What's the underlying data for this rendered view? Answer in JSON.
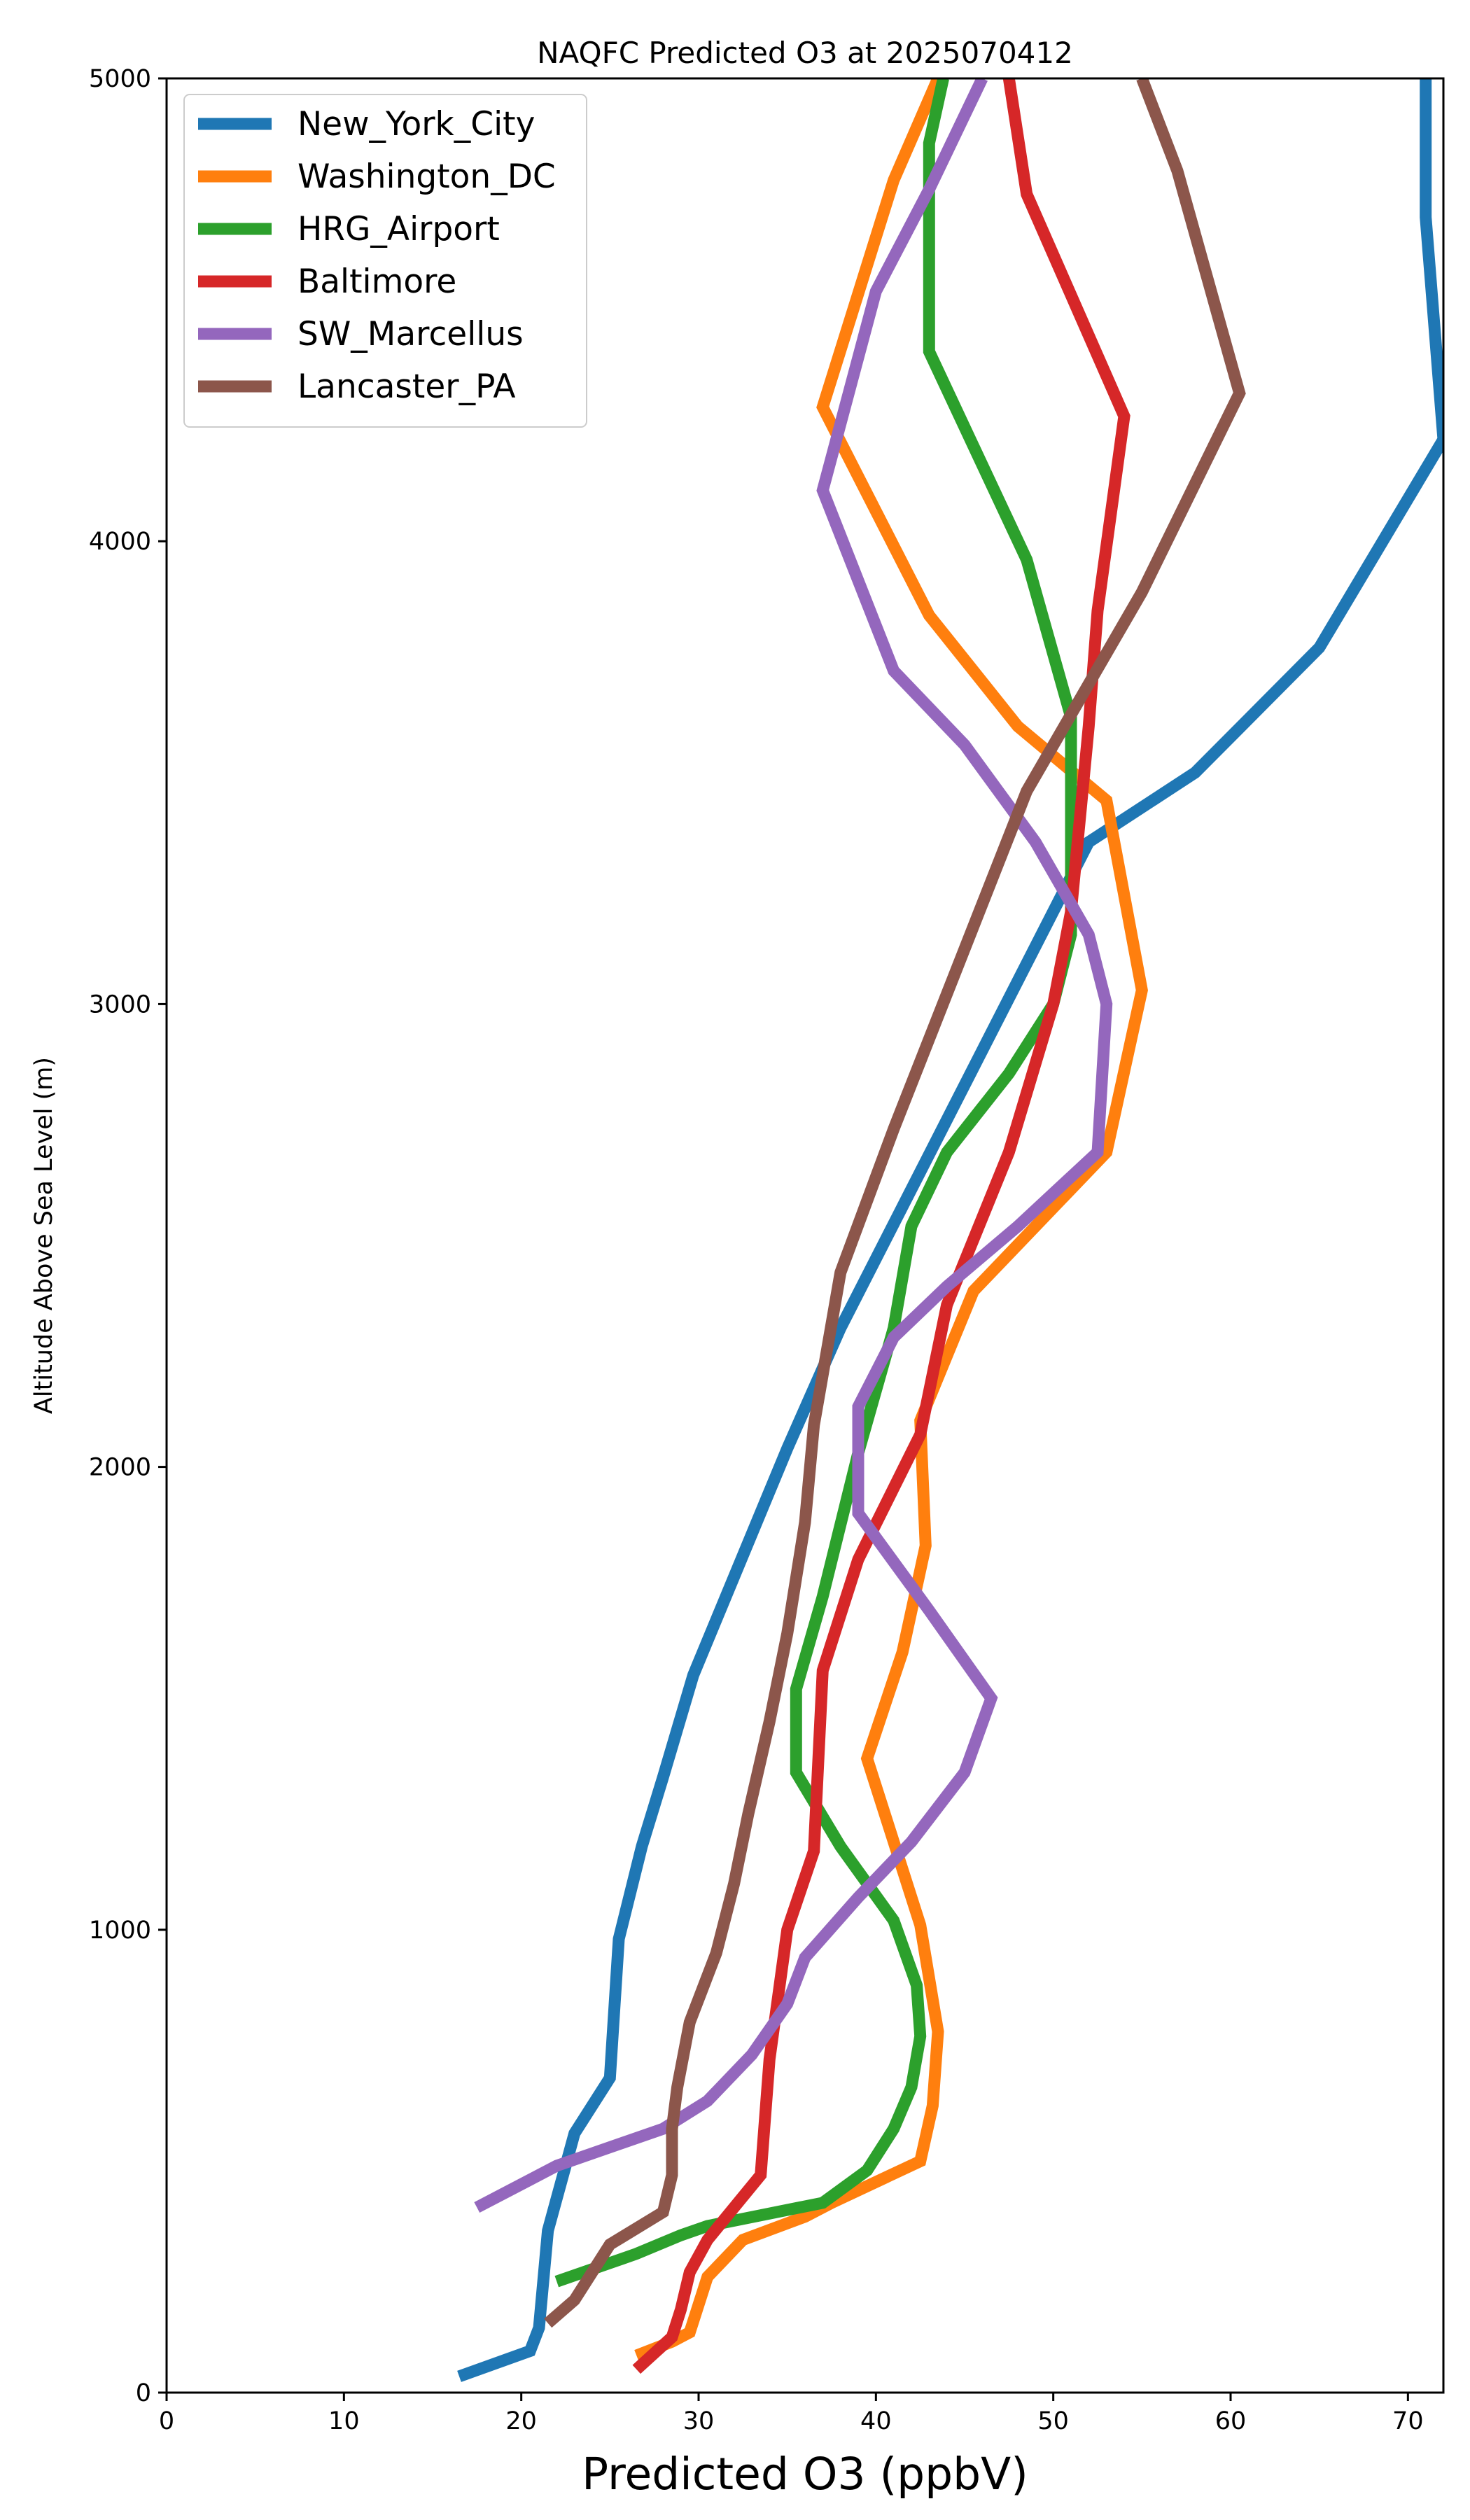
{
  "chart_data": {
    "type": "line",
    "title": "NAQFC Predicted O3 at 2025070412",
    "xlabel": "Predicted O3 (ppbV)",
    "ylabel": "Altitude Above Sea Level (m)",
    "xlim": [
      0,
      72
    ],
    "ylim": [
      0,
      5000
    ],
    "xticks": [
      "0",
      "10",
      "20",
      "30",
      "40",
      "50",
      "60",
      "70"
    ],
    "yticks": [
      "0",
      "1000",
      "2000",
      "3000",
      "4000",
      "5000"
    ],
    "grid": false,
    "legend_position": "top-left",
    "series": [
      {
        "name": "New_York_City",
        "color": "#1f77b4",
        "points": [
          [
            16.5,
            35
          ],
          [
            20.5,
            90
          ],
          [
            21,
            140
          ],
          [
            21.5,
            350
          ],
          [
            23,
            560
          ],
          [
            25,
            680
          ],
          [
            25.5,
            980
          ],
          [
            26.8,
            1180
          ],
          [
            28,
            1330
          ],
          [
            29.7,
            1550
          ],
          [
            35,
            2040
          ],
          [
            38,
            2300
          ],
          [
            42,
            2600
          ],
          [
            46,
            2900
          ],
          [
            52,
            3350
          ],
          [
            58,
            3500
          ],
          [
            65,
            3770
          ],
          [
            72,
            4220
          ],
          [
            71,
            4700
          ],
          [
            71,
            5000
          ]
        ]
      },
      {
        "name": "Washington_DC",
        "color": "#ff7f0e",
        "points": [
          [
            26.5,
            80
          ],
          [
            28.5,
            110
          ],
          [
            29.5,
            130
          ],
          [
            30.5,
            250
          ],
          [
            32.5,
            330
          ],
          [
            36,
            380
          ],
          [
            37.5,
            410
          ],
          [
            42.5,
            500
          ],
          [
            43.2,
            620
          ],
          [
            43.5,
            780
          ],
          [
            42.5,
            1010
          ],
          [
            39.5,
            1370
          ],
          [
            41.5,
            1600
          ],
          [
            42.8,
            1830
          ],
          [
            42.5,
            2100
          ],
          [
            45.5,
            2380
          ],
          [
            53,
            2680
          ],
          [
            55,
            3030
          ],
          [
            53,
            3440
          ],
          [
            48,
            3600
          ],
          [
            43,
            3840
          ],
          [
            37,
            4290
          ],
          [
            41,
            4780
          ],
          [
            43.5,
            5000
          ]
        ]
      },
      {
        "name": "HRG_Airport",
        "color": "#2ca02c",
        "points": [
          [
            22,
            240
          ],
          [
            25,
            280
          ],
          [
            26.5,
            300
          ],
          [
            29,
            340
          ],
          [
            30.5,
            360
          ],
          [
            37,
            410
          ],
          [
            39.5,
            480
          ],
          [
            41,
            570
          ],
          [
            42,
            660
          ],
          [
            42.5,
            770
          ],
          [
            42.3,
            880
          ],
          [
            41,
            1020
          ],
          [
            38,
            1180
          ],
          [
            35.5,
            1340
          ],
          [
            35.5,
            1520
          ],
          [
            37,
            1720
          ],
          [
            39,
            2030
          ],
          [
            41,
            2300
          ],
          [
            42,
            2520
          ],
          [
            44,
            2680
          ],
          [
            47.5,
            2850
          ],
          [
            50,
            3000
          ],
          [
            51,
            3150
          ],
          [
            51,
            3620
          ],
          [
            48.5,
            3960
          ],
          [
            43,
            4410
          ],
          [
            43,
            4860
          ],
          [
            43.8,
            5000
          ]
        ]
      },
      {
        "name": "Baltimore",
        "color": "#d62728",
        "points": [
          [
            26.5,
            50
          ],
          [
            28.5,
            120
          ],
          [
            29,
            180
          ],
          [
            29.5,
            260
          ],
          [
            30.5,
            330
          ],
          [
            33.5,
            470
          ],
          [
            34,
            720
          ],
          [
            35,
            1000
          ],
          [
            36.5,
            1170
          ],
          [
            37,
            1560
          ],
          [
            39,
            1800
          ],
          [
            42.5,
            2070
          ],
          [
            44,
            2350
          ],
          [
            47.5,
            2680
          ],
          [
            50,
            3000
          ],
          [
            51,
            3200
          ],
          [
            52,
            3600
          ],
          [
            52.5,
            3850
          ],
          [
            54,
            4270
          ],
          [
            48.5,
            4750
          ],
          [
            47.5,
            5000
          ]
        ]
      },
      {
        "name": "SW_Marcellus",
        "color": "#9467bd",
        "points": [
          [
            17.5,
            400
          ],
          [
            22,
            490
          ],
          [
            28,
            570
          ],
          [
            30.5,
            630
          ],
          [
            33,
            730
          ],
          [
            35,
            840
          ],
          [
            36,
            940
          ],
          [
            39,
            1070
          ],
          [
            42,
            1190
          ],
          [
            45,
            1340
          ],
          [
            46.5,
            1500
          ],
          [
            43,
            1690
          ],
          [
            39,
            1900
          ],
          [
            39,
            2130
          ],
          [
            41,
            2280
          ],
          [
            44,
            2390
          ],
          [
            48,
            2520
          ],
          [
            52.5,
            2680
          ],
          [
            53,
            3000
          ],
          [
            52,
            3150
          ],
          [
            49,
            3350
          ],
          [
            45,
            3560
          ],
          [
            41,
            3720
          ],
          [
            37,
            4110
          ],
          [
            40,
            4540
          ],
          [
            43,
            4760
          ],
          [
            46,
            5000
          ]
        ]
      },
      {
        "name": "Lancaster_PA",
        "color": "#8c564b",
        "points": [
          [
            21.5,
            150
          ],
          [
            23,
            200
          ],
          [
            25,
            320
          ],
          [
            28,
            390
          ],
          [
            28.5,
            470
          ],
          [
            28.5,
            570
          ],
          [
            28.8,
            660
          ],
          [
            29.5,
            800
          ],
          [
            31,
            950
          ],
          [
            32,
            1100
          ],
          [
            32.8,
            1250
          ],
          [
            34,
            1450
          ],
          [
            35,
            1640
          ],
          [
            36,
            1880
          ],
          [
            36.5,
            2090
          ],
          [
            38,
            2420
          ],
          [
            41,
            2730
          ],
          [
            48.5,
            3460
          ],
          [
            55,
            3890
          ],
          [
            60.5,
            4320
          ],
          [
            57,
            4800
          ],
          [
            55,
            5000
          ]
        ]
      }
    ]
  }
}
